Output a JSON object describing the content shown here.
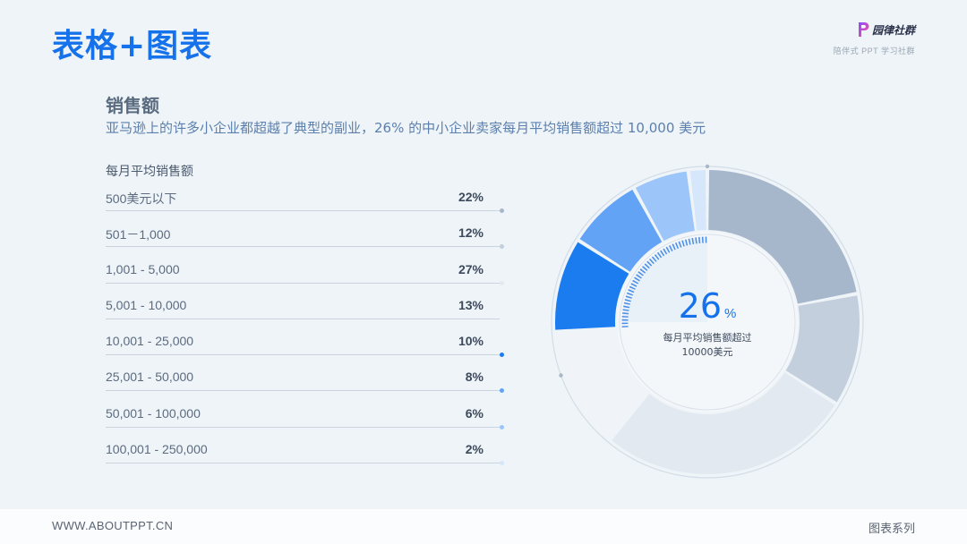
{
  "header": {
    "title": "表格+图表",
    "brand_name": "园律社群",
    "brand_tagline": "陪伴式 PPT 学习社群"
  },
  "section": {
    "title": "销售额",
    "description": "亚马逊上的许多小企业都超越了典型的副业，26% 的中小企业卖家每月平均销售额超过 10,000 美元"
  },
  "chart_data": {
    "type": "pie",
    "title": "每月平均销售额",
    "categories": [
      "500美元以下",
      "501－1,000",
      "1,001 - 5,000",
      "5,001 - 10,000",
      "10,001 - 25,000",
      "25,001 - 50,000",
      "50,001 - 100,000",
      "100,001 - 250,000"
    ],
    "values": [
      22,
      12,
      27,
      13,
      10,
      8,
      6,
      2
    ],
    "value_labels": [
      "22%",
      "12%",
      "27%",
      "13%",
      "10%",
      "8%",
      "6%",
      "2%"
    ],
    "colors": [
      "#a6b6cb",
      "#c3cfdc",
      "#e3e9f1",
      "#f0f4f8",
      "#1b7cf0",
      "#62a3f6",
      "#9cc6fa",
      "#d6e7fc"
    ],
    "highlight": {
      "value": "26",
      "unit": "%",
      "label_line1": "每月平均销售额超过",
      "label_line2": "10000美元"
    }
  },
  "footer": {
    "website": "WWW.ABOUTPPT.CN",
    "series": "图表系列"
  }
}
